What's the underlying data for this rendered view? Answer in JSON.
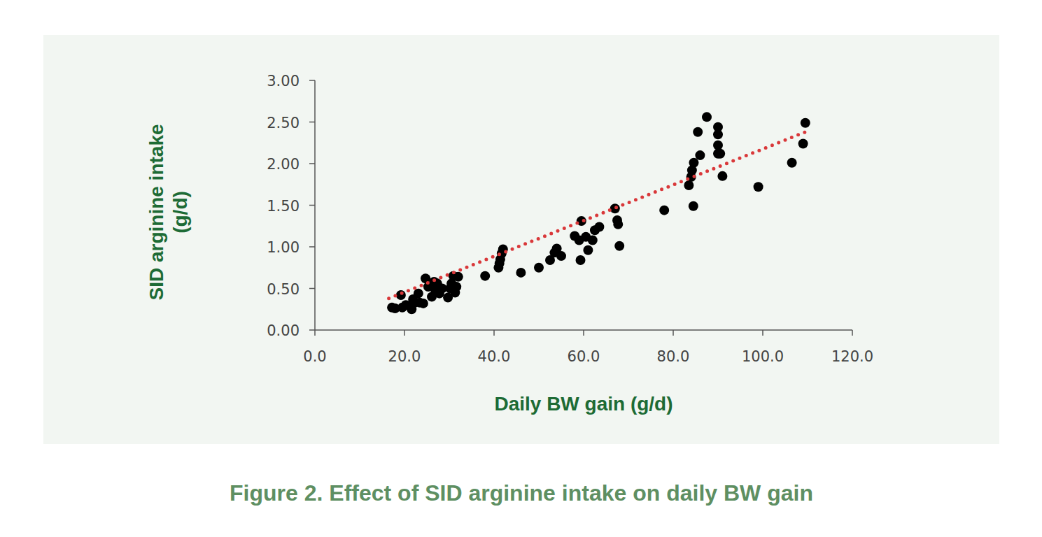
{
  "chart_data": {
    "type": "scatter",
    "title": "Figure 2. Effect of SID arginine intake on daily BW gain",
    "x_label": "Daily BW gain (g/d)",
    "y_label": "SID arginine intake\n(g/d)",
    "xlim": [
      0,
      120
    ],
    "ylim": [
      0,
      3
    ],
    "xticks": [
      {
        "value": 0,
        "label": "0.0"
      },
      {
        "value": 20,
        "label": "20.0"
      },
      {
        "value": 40,
        "label": "40.0"
      },
      {
        "value": 60,
        "label": "60.0"
      },
      {
        "value": 80,
        "label": "80.0"
      },
      {
        "value": 100,
        "label": "100.0"
      },
      {
        "value": 120,
        "label": "120.0"
      }
    ],
    "yticks": [
      {
        "value": 0,
        "label": "0.00"
      },
      {
        "value": 0.5,
        "label": "0.50"
      },
      {
        "value": 1,
        "label": "1.00"
      },
      {
        "value": 1.5,
        "label": "1.50"
      },
      {
        "value": 2,
        "label": "2.00"
      },
      {
        "value": 2.5,
        "label": "2.50"
      },
      {
        "value": 3,
        "label": "3.00"
      }
    ],
    "grid": false,
    "series": [
      {
        "type": "scatter",
        "marker": "circle",
        "color": "#000000",
        "x": [
          17.2,
          17.9,
          19.2,
          19.5,
          20.3,
          21.1,
          21.6,
          21.9,
          22.3,
          23.1,
          23.4,
          24.2,
          24.7,
          25.3,
          26.1,
          26.6,
          26.9,
          27.3,
          27.8,
          28.4,
          29.7,
          30.2,
          30.5,
          30.9,
          31.3,
          31.6,
          32.0,
          38.0,
          41.0,
          41.2,
          41.4,
          41.7,
          42.0,
          46.0,
          50.0,
          52.5,
          53.5,
          54.0,
          55.0,
          58.0,
          59.0,
          59.5,
          59.3,
          60.5,
          61.0,
          62.0,
          62.5,
          63.5,
          67.0,
          67.5,
          67.7,
          68.0,
          78.0,
          83.5,
          84.0,
          84.2,
          84.6,
          84.5,
          85.5,
          86.0,
          87.5,
          90.0,
          90.0,
          90.0,
          90.0,
          90.5,
          91.0,
          99.0,
          106.5,
          109.0,
          109.5
        ],
        "values": [
          0.27,
          0.26,
          0.42,
          0.27,
          0.3,
          0.29,
          0.25,
          0.37,
          0.33,
          0.44,
          0.33,
          0.32,
          0.62,
          0.52,
          0.4,
          0.58,
          0.48,
          0.56,
          0.44,
          0.5,
          0.39,
          0.5,
          0.56,
          0.65,
          0.45,
          0.52,
          0.64,
          0.65,
          0.75,
          0.8,
          0.85,
          0.92,
          0.97,
          0.69,
          0.75,
          0.84,
          0.93,
          0.98,
          0.89,
          1.13,
          1.08,
          1.31,
          0.84,
          1.12,
          0.96,
          1.08,
          1.2,
          1.24,
          1.46,
          1.32,
          1.27,
          1.01,
          1.44,
          1.74,
          1.84,
          1.92,
          2.01,
          1.49,
          2.38,
          2.1,
          2.56,
          2.44,
          2.35,
          2.22,
          2.12,
          2.12,
          1.85,
          1.72,
          2.01,
          2.24,
          2.49
        ]
      },
      {
        "type": "line",
        "line_style": "dotted",
        "color": "#d9383a",
        "x": [
          16.5,
          109.5
        ],
        "values": [
          0.38,
          2.38
        ]
      }
    ]
  }
}
